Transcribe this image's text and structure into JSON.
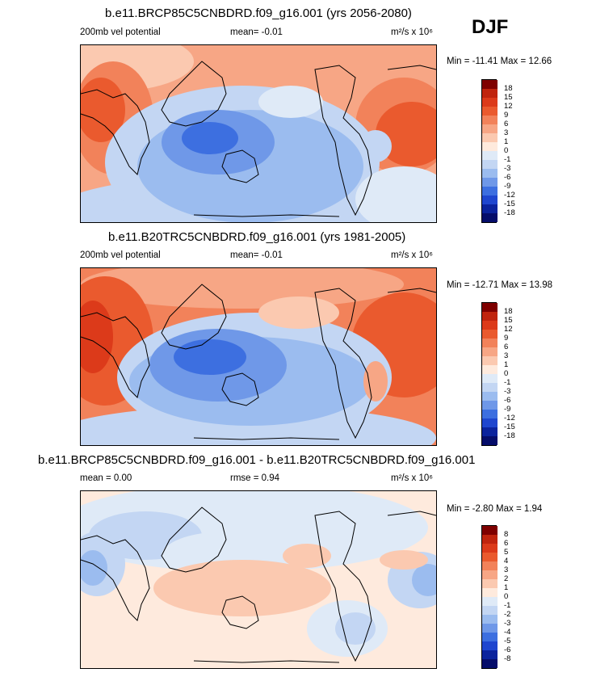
{
  "season": "DJF",
  "panels": [
    {
      "title": "b.e11.BRCP85C5CNBDRD.f09_g16.001 (yrs 2056-2080)",
      "left_label": "200mb vel potential",
      "center_label": "mean=  -0.01",
      "units": "m²/s x 10⁶",
      "min_max": "Min = -11.41 Max =  12.66",
      "levels": [
        "18",
        "15",
        "12",
        "9",
        "6",
        "3",
        "1",
        "0",
        "-1",
        "-3",
        "-6",
        "-9",
        "-12",
        "-15",
        "-18"
      ],
      "colors": [
        "#7f0000",
        "#c0240e",
        "#dc3a1a",
        "#ea5a2e",
        "#f2825a",
        "#f7a685",
        "#fbc9b0",
        "#feeadd",
        "#dfeaf7",
        "#c3d6f3",
        "#9bbcef",
        "#6f98e8",
        "#3d6fe0",
        "#1f46cf",
        "#0b239d",
        "#050d6a"
      ],
      "stats": "",
      "map": "ssp"
    },
    {
      "title": "b.e11.B20TRC5CNBDRD.f09_g16.001 (yrs 1981-2005)",
      "left_label": "200mb vel potential",
      "center_label": "mean=  -0.01",
      "units": "m²/s x 10⁶",
      "min_max": "Min = -12.71 Max =  13.98",
      "levels": [
        "18",
        "15",
        "12",
        "9",
        "6",
        "3",
        "1",
        "0",
        "-1",
        "-3",
        "-6",
        "-9",
        "-12",
        "-15",
        "-18"
      ],
      "colors": [
        "#7f0000",
        "#c0240e",
        "#dc3a1a",
        "#ea5a2e",
        "#f2825a",
        "#f7a685",
        "#fbc9b0",
        "#feeadd",
        "#dfeaf7",
        "#c3d6f3",
        "#9bbcef",
        "#6f98e8",
        "#3d6fe0",
        "#1f46cf",
        "#0b239d",
        "#050d6a"
      ],
      "map": "hist"
    },
    {
      "title": "b.e11.BRCP85C5CNBDRD.f09_g16.001 - b.e11.B20TRC5CNBDRD.f09_g16.001",
      "left_label": "mean =   0.00",
      "center_label": "rmse =   0.94",
      "units": "m²/s x 10⁶",
      "min_max": "Min = -2.80 Max =   1.94",
      "levels": [
        "8",
        "6",
        "5",
        "4",
        "3",
        "2",
        "1",
        "0",
        "-1",
        "-2",
        "-3",
        "-4",
        "-5",
        "-6",
        "-8"
      ],
      "colors": [
        "#7f0000",
        "#c0240e",
        "#dc3a1a",
        "#ea5a2e",
        "#f2825a",
        "#f7a685",
        "#fbc9b0",
        "#feeadd",
        "#dfeaf7",
        "#c3d6f3",
        "#9bbcef",
        "#6f98e8",
        "#3d6fe0",
        "#1f46cf",
        "#0b239d",
        "#050d6a"
      ],
      "map": "diff"
    }
  ]
}
